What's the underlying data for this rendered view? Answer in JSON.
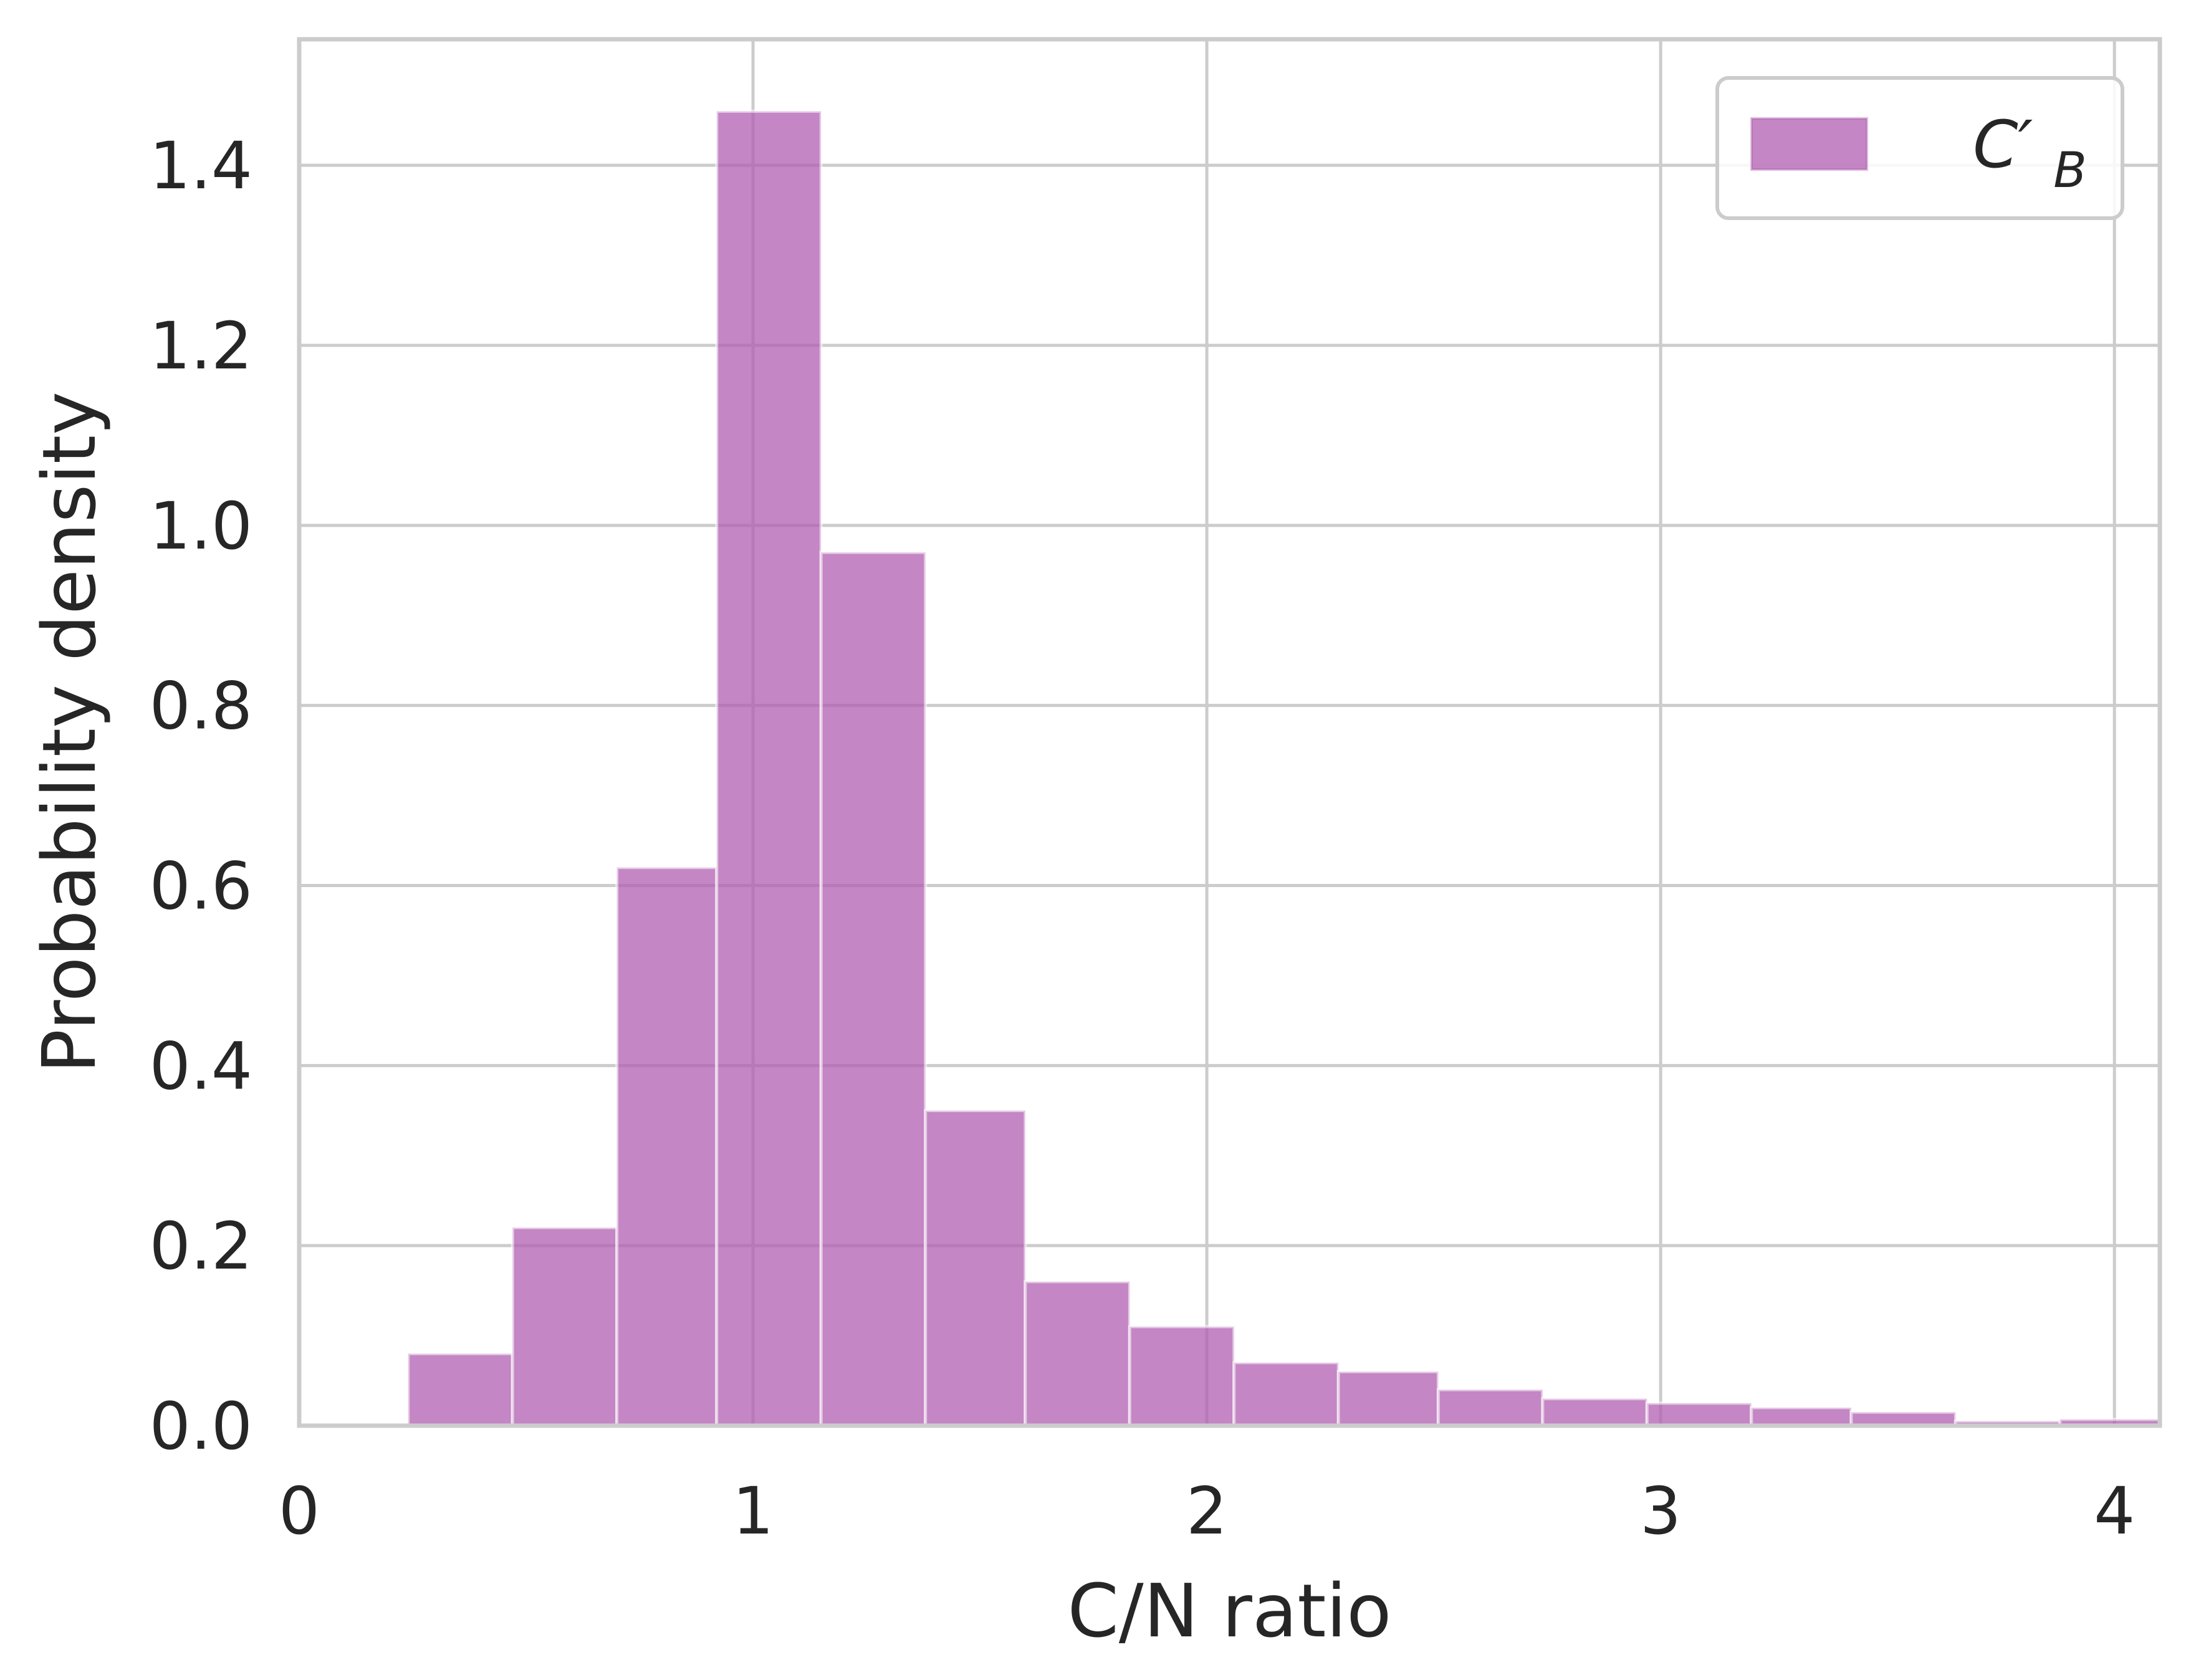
{
  "chart_data": {
    "type": "bar",
    "xlabel": "C/N ratio",
    "ylabel": "Probability density",
    "xlim": [
      0,
      4.1
    ],
    "ylim": [
      0,
      1.54
    ],
    "x_ticks": [
      0,
      1,
      2,
      3,
      4
    ],
    "x_tick_labels": [
      "0",
      "1",
      "2",
      "3",
      "4"
    ],
    "y_ticks": [
      0.0,
      0.2,
      0.4,
      0.6,
      0.8,
      1.0,
      1.2,
      1.4
    ],
    "y_tick_labels": [
      "0.0",
      "0.2",
      "0.4",
      "0.6",
      "0.8",
      "1.0",
      "1.2",
      "1.4"
    ],
    "grid": true,
    "legend_placement": "top-right",
    "bar_color": "#b05db0",
    "bar_opacity": 0.75,
    "series": [
      {
        "name": "C′B",
        "legend_main": "C′",
        "legend_sub": "B",
        "bins": [
          {
            "x0": 0.24,
            "x1": 0.47,
            "value": 0.08
          },
          {
            "x0": 0.47,
            "x1": 0.7,
            "value": 0.22
          },
          {
            "x0": 0.7,
            "x1": 0.92,
            "value": 0.62
          },
          {
            "x0": 0.92,
            "x1": 1.15,
            "value": 1.46
          },
          {
            "x0": 1.15,
            "x1": 1.38,
            "value": 0.97
          },
          {
            "x0": 1.38,
            "x1": 1.6,
            "value": 0.35
          },
          {
            "x0": 1.6,
            "x1": 1.83,
            "value": 0.16
          },
          {
            "x0": 1.83,
            "x1": 2.06,
            "value": 0.11
          },
          {
            "x0": 2.06,
            "x1": 2.29,
            "value": 0.07
          },
          {
            "x0": 2.29,
            "x1": 2.51,
            "value": 0.06
          },
          {
            "x0": 2.51,
            "x1": 2.74,
            "value": 0.04
          },
          {
            "x0": 2.74,
            "x1": 2.97,
            "value": 0.03
          },
          {
            "x0": 2.97,
            "x1": 3.2,
            "value": 0.025
          },
          {
            "x0": 3.2,
            "x1": 3.42,
            "value": 0.02
          },
          {
            "x0": 3.42,
            "x1": 3.65,
            "value": 0.015
          },
          {
            "x0": 3.65,
            "x1": 3.88,
            "value": 0.005
          },
          {
            "x0": 3.88,
            "x1": 4.1,
            "value": 0.007
          }
        ]
      }
    ]
  }
}
